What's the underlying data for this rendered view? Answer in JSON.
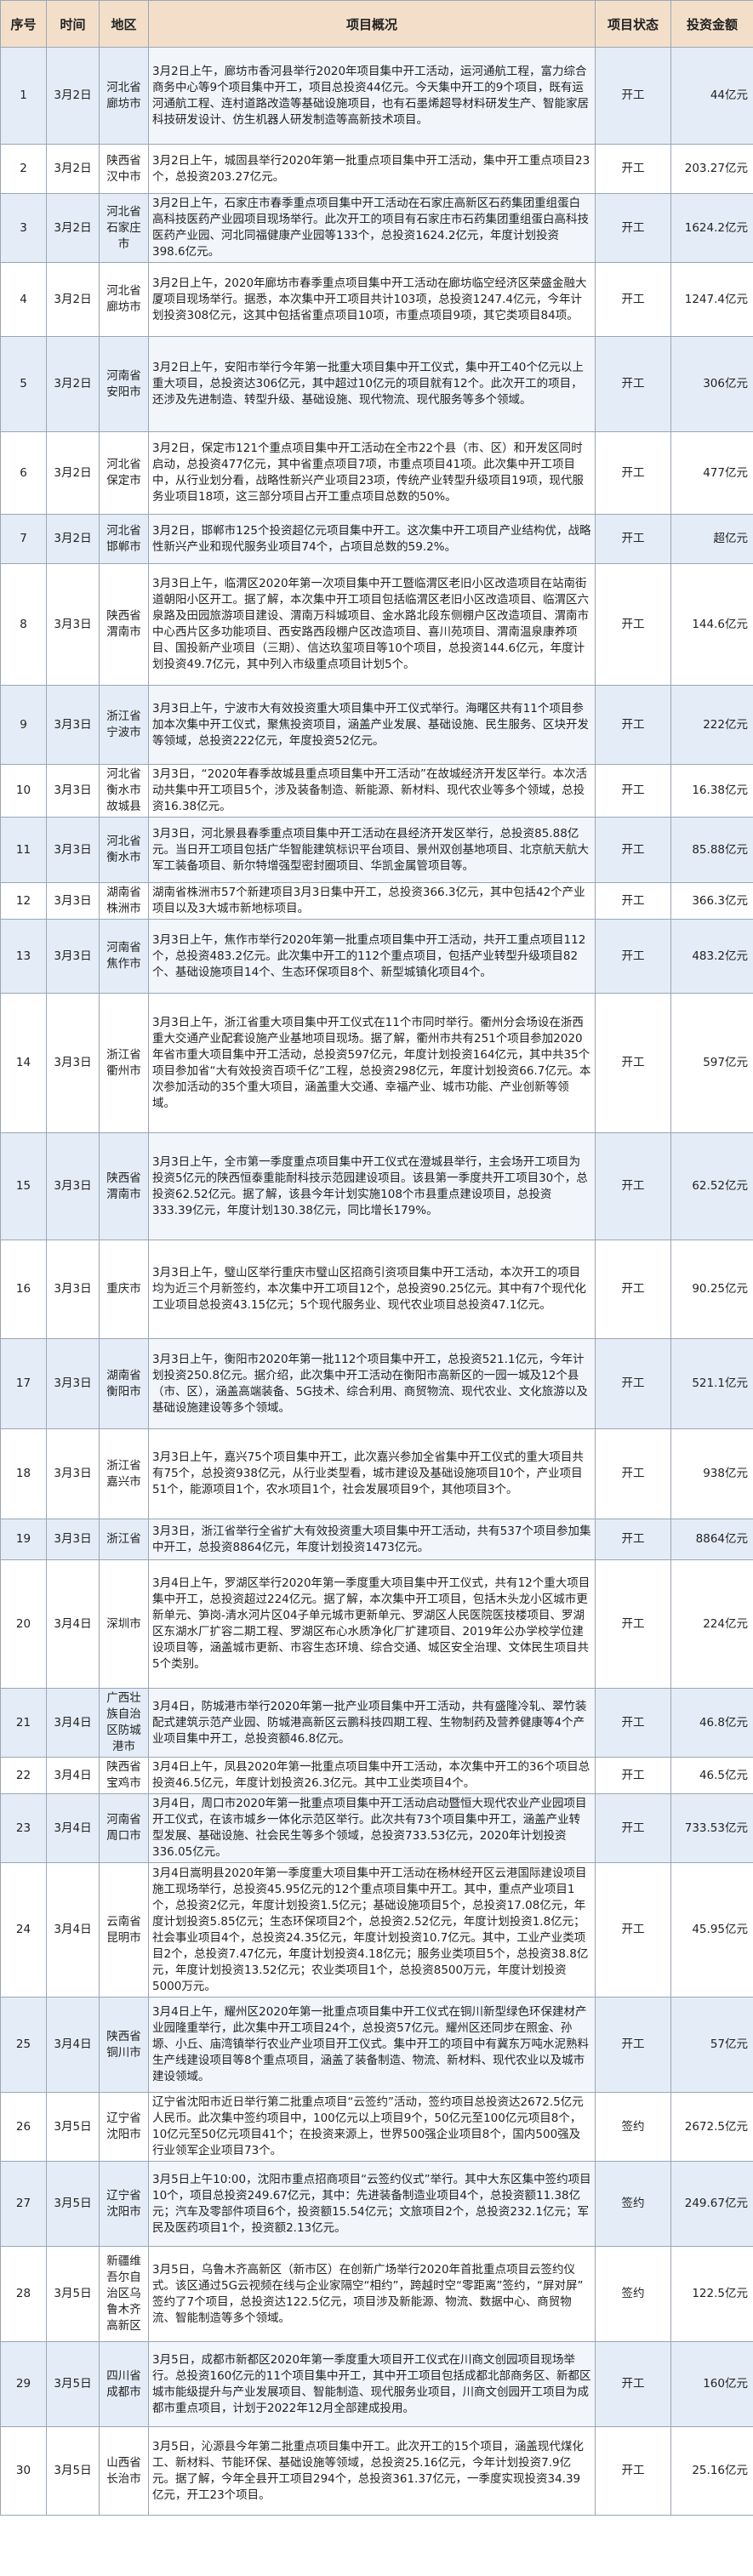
{
  "table": {
    "headers": [
      "序号",
      "时间",
      "地区",
      "项目概况",
      "项目状态",
      "投资金额"
    ],
    "rows": [
      [
        "1",
        "3月2日",
        "河北省廊坊市",
        "3月2日上午，廊坊市香河县举行2020年项目集中开工活动，运河通航工程，富力综合商务中心等9个项目集中开工，项目总投资44亿元。今天集中开工的9个项目，既有运河通航工程、连村道路改造等基础设施项目，也有石墨烯超导材料研发生产、智能家居科技研发设计、仿生机器人研发制造等高新技术项目。",
        "开工",
        "44亿元"
      ],
      [
        "2",
        "3月2日",
        "陕西省汉中市",
        "3月2日上午，城固县举行2020年第一批重点项目集中开工活动，集中开工重点项目23个，总投资203.27亿元。",
        "开工",
        "203.27亿元"
      ],
      [
        "3",
        "3月2日",
        "河北省石家庄市",
        "3月2日上午，石家庄市春季重点项目集中开工活动在石家庄高新区石药集团重组蛋白高科技医药产业园项目现场举行。此次开工的项目有石家庄市石药集团重组蛋白高科技医药产业园、河北同福健康产业园等133个，总投资1624.2亿元，年度计划投资398.6亿元。",
        "开工",
        "1624.2亿元"
      ],
      [
        "4",
        "3月2日",
        "河北省廊坊市",
        "3月2日上午，2020年廊坊市春季重点项目集中开工活动在廊坊临空经济区荣盛金融大厦项目现场举行。据悉，本次集中开工项目共计103项，总投资1247.4亿元，今年计划投资308亿元，这其中包括省重点项目10项，市重点项目9项，其它类项目84项。",
        "开工",
        "1247.4亿元"
      ],
      [
        "5",
        "3月2日",
        "河南省安阳市",
        "3月2日上午，安阳市举行今年第一批重大项目集中开工仪式，集中开工40个亿元以上重大项目，总投资达306亿元，其中超过10亿元的项目就有12个。此次开工的项目，还涉及先进制造、转型升级、基础设施、现代物流、现代服务等多个领域。",
        "开工",
        "306亿元"
      ],
      [
        "6",
        "3月2日",
        "河北省保定市",
        "3月2日，保定市121个重点项目集中开工活动在全市22个县（市、区）和开发区同时启动，总投资477亿元，其中省重点项目7项，市重点项目41项。此次集中开工项目中，从行业划分看，战略性新兴产业项目23项，传统产业转型升级项目19项，现代服务业项目18项，这三部分项目占开工重点项目总数的50%。",
        "开工",
        "477亿元"
      ],
      [
        "7",
        "3月2日",
        "河北省邯郸市",
        "3月2日，邯郸市125个投资超亿元项目集中开工。这次集中开工项目产业结构优，战略性新兴产业和现代服务业项目74个，占项目总数的59.2%。",
        "开工",
        "超亿元"
      ],
      [
        "8",
        "3月3日",
        "陕西省渭南市",
        "3月3日上午，临渭区2020年第一次项目集中开工暨临渭区老旧小区改造项目在站南街道朝阳小区开工。据了解，本次集中开工项目包括临渭区老旧小区改造项目、临渭区六泉路及田园旅游项目建设、渭南万科城项目、金水路北段东侧棚户区改造项目、渭南市中心西片区多功能项目、西安路西段棚户区改造项目、喜川苑项目、渭南温泉康养项目、国投新产业项目（三期）、信达玖玺项目等10个项目，总投资144.6亿元，年度计划投资49.7亿元，其中列入市级重点项目计划5个。",
        "开工",
        "144.6亿元"
      ],
      [
        "9",
        "3月3日",
        "浙江省宁波市",
        "3月3日上午，宁波市大有效投资重大项目集中开工仪式举行。海曙区共有11个项目参加本次集中开工仪式，聚焦投资项目，涵盖产业发展、基础设施、民生服务、区块开发等领域，总投资222亿元，年度投资52亿元。",
        "开工",
        "222亿元"
      ],
      [
        "10",
        "3月3日",
        "河北省衡水市故城县",
        "3月3日，“2020年春季故城县重点项目集中开工活动”在故城经济开发区举行。本次活动共集中开工项目5个，涉及装备制造、新能源、新材料、现代农业等多个领域，总投资16.38亿元。",
        "开工",
        "16.38亿元"
      ],
      [
        "11",
        "3月3日",
        "河北省衡水市",
        "3月3日，河北景县春季重点项目集中开工活动在县经济开发区举行，总投资85.88亿元。当日开工项目包括广华智能建筑标识平台项目、景州双创基地项目、北京航天航大军工装备项目、新尔特增强型密封圈项目、华凯金属管项目等。",
        "开工",
        "85.88亿元"
      ],
      [
        "12",
        "3月3日",
        "湖南省株洲市",
        "湖南省株洲市57个新建项目3月3日集中开工，总投资366.3亿元，其中包括42个产业项目以及3大城市新地标项目。",
        "开工",
        "366.3亿元"
      ],
      [
        "13",
        "3月3日",
        "河南省焦作市",
        "3月3日上午，焦作市举行2020年第一批重点项目集中开工活动，共开工重点项目112个，总投资483.2亿元。此次集中开工的112个重点项目，包括产业转型升级项目82个、基础设施项目14个、生态环保项目8个、新型城镇化项目4个。",
        "开工",
        "483.2亿元"
      ],
      [
        "14",
        "3月3日",
        "浙江省衢州市",
        "3月3日上午，浙江省重大项目集中开工仪式在11个市同时举行。衢州分会场设在浙西重大交通产业配套设施产业基地项目现场。据了解，衢州市共有251个项目参加2020年省市重大项目集中开工活动，总投资597亿元，年度计划投资164亿元，其中共35个项目参加省“大有效投资百项千亿”工程，总投资298亿元，年度计划投资66.7亿元。本次参加活动的35个重大项目，涵盖重大交通、幸福产业、城市功能、产业创新等领域。",
        "开工",
        "597亿元"
      ],
      [
        "15",
        "3月3日",
        "陕西省渭南市",
        "3月3日上午，全市第一季度重点项目集中开工仪式在澄城县举行，主会场开工项目为投资5亿元的陕西恒泰重能耐科技示范园建设项目。该县第一季度共开工项目30个，总投资62.52亿元。据了解，该县今年计划实施108个市县重点建设项目，总投资333.39亿元，年度计划130.38亿元，同比增长179%。",
        "开工",
        "62.52亿元"
      ],
      [
        "16",
        "3月3日",
        "重庆市",
        "3月3日上午，璧山区举行重庆市璧山区招商引资项目集中开工活动，本次开工的项目均为近三个月新签约，本次集中开工项目12个，总投资90.25亿元。其中有7个现代化工业项目总投资43.15亿元；5个现代服务业、现代农业项目总投资47.1亿元。",
        "开工",
        "90.25亿元"
      ],
      [
        "17",
        "3月3日",
        "湖南省衡阳市",
        "3月3日上午，衡阳市2020年第一批112个项目集中开工，总投资521.1亿元，今年计划投资250.8亿元。据介绍，此次集中开工活动在衡阳市高新区的一园一城及12个县（市、区），涵盖高端装备、5G技术、综合利用、商贸物流、现代农业、文化旅游以及基础设施建设等多个领域。",
        "开工",
        "521.1亿元"
      ],
      [
        "18",
        "3月3日",
        "浙江省嘉兴市",
        "3月3日上午，嘉兴75个项目集中开工，此次嘉兴参加全省集中开工仪式的重大项目共有75个，总投资938亿元，从行业类型看，城市建设及基础设施项目10个，产业项目51个，能源项目1个，农水项目1个，社会发展项目9个，其他项目3个。",
        "开工",
        "938亿元"
      ],
      [
        "19",
        "3月3日",
        "浙江省",
        "3月3日，浙江省举行全省扩大有效投资重大项目集中开工活动，共有537个项目参加集中开工，总投资8864亿元，年度计划投资1473亿元。",
        "开工",
        "8864亿元"
      ],
      [
        "20",
        "3月4日",
        "深圳市",
        "3月4日上午，罗湖区举行2020年第一季度重大项目集中开工仪式，共有12个重大项目集中开工，总投资超过224亿元。据了解，本次集中开工项目，包括木头龙小区城市更新单元、笋岗-清水河片区04子单元城市更新单元、罗湖区人民医院医技楼项目、罗湖区东湖水厂扩容二期工程、罗湖区布心水质净化厂扩建项目、2019年公办学校学位建设项目等，涵盖城市更新、市容生态环境、综合交通、城区安全治理、文体民生项目共5个类别。",
        "开工",
        "224亿元"
      ],
      [
        "21",
        "3月4日",
        "广西壮族自治区防城港市",
        "3月4日，防城港市举行2020年第一批产业项目集中开工活动，共有盛隆冷轧、翠竹装配式建筑示范产业园、防城港高新区云鹏科技四期工程、生物制药及营养健康等4个产业项目集中开工，总投资额46.8亿元。",
        "开工",
        "46.8亿元"
      ],
      [
        "22",
        "3月4日",
        "陕西省宝鸡市",
        "3月4日上午，凤县2020年第一批重点项目集中开工活动，本次集中开工的36个项目总投资46.5亿元，年度计划投资26.3亿元。其中工业类项目4个。",
        "开工",
        "46.5亿元"
      ],
      [
        "23",
        "3月4日",
        "河南省周口市",
        "3月4日，周口市2020年第一批重点项目集中开工活动启动暨恒大现代农业产业园项目开工仪式，在该市城乡一体化示范区举行。此次共有73个项目集中开工，涵盖产业转型发展、基础设施、社会民生等多个领域，总投资733.53亿元，2020年计划投资336.05亿元。",
        "开工",
        "733.53亿元"
      ],
      [
        "24",
        "3月4日",
        "云南省昆明市",
        "3月4日嵩明县2020年第一季度重大项目集中开工活动在杨林经开区云港国际建设项目施工现场举行，总投资45.95亿元的12个重点项目集中开工。其中，重点产业项目1个，总投资2亿元，年度计划投资1.5亿元；基础设施项目5个，总投资17.08亿元，年度计划投资5.85亿元；生态环保项目2个，总投资2.52亿元，年度计划投资1.8亿元；社会事业项目4个，总投资24.35亿元，年度计划投资10.7亿元。其中，工业产业类项目2个，总投资7.47亿元，年度计划投资4.18亿元；服务业类项目5个，总投资38.8亿元，年度计划投资13.52亿元；农业类项目1个，总投资8500万元，年度计划投资5000万元。",
        "开工",
        "45.95亿元"
      ],
      [
        "25",
        "3月4日",
        "陕西省铜川市",
        "3月4日上午，耀州区2020年第一批重点项目集中开工仪式在铜川新型绿色环保建材产业园隆重举行，此次集中开工项目24个，总投资57亿元。耀州区还同步在照金、孙塬、小丘、庙湾镇举行农业产业项目开工仪式。集中开工的项目中有冀东万吨水泥熟料生产线建设项目等8个重点项目，涵盖了装备制造、物流、新材料、现代农业以及城市建设领域。",
        "开工",
        "57亿元"
      ],
      [
        "26",
        "3月5日",
        "辽宁省沈阳市",
        "辽宁省沈阳市近日举行第二批重点项目“云签约”活动，签约项目总投资达2672.5亿元人民币。此次集中签约项目中，100亿元以上项目9个，50亿元至100亿元项目8个，10亿元至50亿元项目41个；在投资来源上，世界500强企业项目8个，国内500强及行业领军企业项目73个。",
        "签约",
        "2672.5亿元"
      ],
      [
        "27",
        "3月5日",
        "辽宁省沈阳市",
        "3月5日上午10:00，沈阳市重点招商项目“云签约仪式”举行。其中大东区集中签约项目10个，项目总投资249.67亿元，其中：先进装备制造业项目4个，总投资额11.38亿元；汽车及零部件项目6个，投资额15.54亿元；文旅项目2个，总投资232.1亿元；军民及医药项目1个，投资额2.13亿元。",
        "签约",
        "249.67亿元"
      ],
      [
        "28",
        "3月5日",
        "新疆维吾尔自治区乌鲁木齐高新区",
        "3月5日，乌鲁木齐高新区（新市区）在创新广场举行2020年首批重点项目云签约仪式。该区通过5G云视频在线与企业家隔空“相约”，跨越时空“零距离”签约，“屏对屏”签约了7个项目，总投资达122.5亿元，项目涉及新能源、物流、数据中心、商贸物流、智能制造等多个领域。",
        "签约",
        "122.5亿元"
      ],
      [
        "29",
        "3月5日",
        "四川省成都市",
        "3月5日，成都市新都区2020年第一季度重大项目开工仪式在川商文创园项目现场举行。总投资160亿元的11个项目集中开工，其中开工项目包括成都北部商务区、新都区城市能级提升与产业发展项目、智能制造、现代服务业项目，川商文创园开工项目为成都市重点项目，计划于2022年12月全部建成投用。",
        "开工",
        "160亿元"
      ],
      [
        "30",
        "3月5日",
        "山西省长治市",
        "3月5日，沁源县今年第二批重点项目集中开工。此次开工的15个项目，涵盖现代煤化工、新材料、节能环保、基础设施等领域，总投资25.16亿元，今年计划投资7.9亿元。据了解，今年全县开工项目294个，总投资361.37亿元，一季度实现投资34.39亿元，开工23个项目。",
        "开工",
        "25.16亿元"
      ]
    ]
  }
}
